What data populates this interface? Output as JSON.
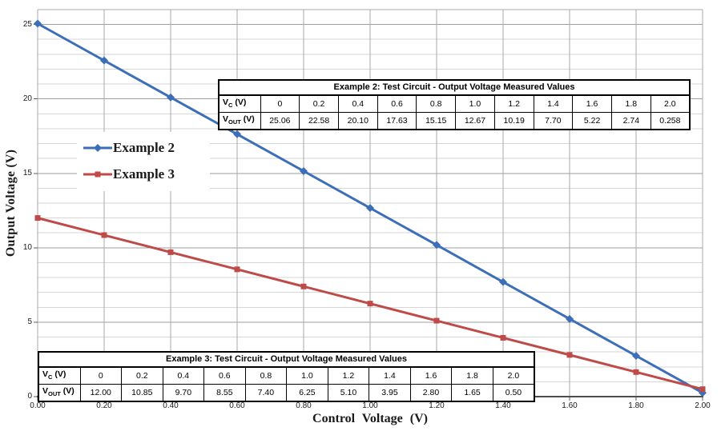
{
  "chart_data": {
    "type": "line",
    "title": "",
    "xlabel": "Control Voltage (V)",
    "ylabel": "Output Voltage (V)",
    "x": [
      0,
      0.2,
      0.4,
      0.6,
      0.8,
      1.0,
      1.2,
      1.4,
      1.6,
      1.8,
      2.0
    ],
    "series": [
      {
        "name": "Example 2",
        "color": "#3C6EB9",
        "marker": "diamond",
        "values": [
          25.06,
          22.58,
          20.1,
          17.63,
          15.15,
          12.67,
          10.19,
          7.7,
          5.22,
          2.74,
          0.258
        ]
      },
      {
        "name": "Example 3",
        "color": "#BE4B48",
        "marker": "square",
        "values": [
          12.0,
          10.85,
          9.7,
          8.55,
          7.4,
          6.25,
          5.1,
          3.95,
          2.8,
          1.65,
          0.5
        ]
      }
    ],
    "xlim": [
      0,
      2.0
    ],
    "ylim": [
      0,
      26
    ],
    "x_tick_labels": [
      "0.00",
      "0.20",
      "0.40",
      "0.60",
      "0.80",
      "1.00",
      "1.20",
      "1.40",
      "1.60",
      "1.80",
      "2.00"
    ],
    "y_tick_labels": [
      "0",
      "5",
      "10",
      "15",
      "20",
      "25"
    ],
    "grid": "on",
    "minor_y_grid_step": 1,
    "major_y_grid_step": 5,
    "legend_position": "inside-upper-left"
  },
  "colors": {
    "series_blue": "#3C6EB9",
    "series_red": "#BE4B48",
    "grid_vertical": "#A8A8A8",
    "grid_minor_h": "#D6D6D6",
    "grid_major_h": "#9E9E9E",
    "axis_line": "#4D4D4D",
    "tick_mark": "#595959"
  },
  "tables": [
    {
      "title": "Example 2: Test Circuit - Output Voltage Measured Values",
      "rows": [
        {
          "header": {
            "main": "V",
            "sub": "C",
            "suffix": " (V)"
          },
          "cells": [
            "0",
            "0.2",
            "0.4",
            "0.6",
            "0.8",
            "1.0",
            "1.2",
            "1.4",
            "1.6",
            "1.8",
            "2.0"
          ]
        },
        {
          "header": {
            "main": "V",
            "sub": "OUT",
            "suffix": " (V)"
          },
          "cells": [
            "25.06",
            "22.58",
            "20.10",
            "17.63",
            "15.15",
            "12.67",
            "10.19",
            "7.70",
            "5.22",
            "2.74",
            "0.258"
          ]
        }
      ]
    },
    {
      "title": "Example 3: Test Circuit - Output Voltage Measured Values",
      "rows": [
        {
          "header": {
            "main": "V",
            "sub": "C",
            "suffix": " (V)"
          },
          "cells": [
            "0",
            "0.2",
            "0.4",
            "0.6",
            "0.8",
            "1.0",
            "1.2",
            "1.4",
            "1.6",
            "1.8",
            "2.0"
          ]
        },
        {
          "header": {
            "main": "V",
            "sub": "OUT",
            "suffix": " (V)"
          },
          "cells": [
            "12.00",
            "10.85",
            "9.70",
            "8.55",
            "7.40",
            "6.25",
            "5.10",
            "3.95",
            "2.80",
            "1.65",
            "0.50"
          ]
        }
      ]
    }
  ]
}
